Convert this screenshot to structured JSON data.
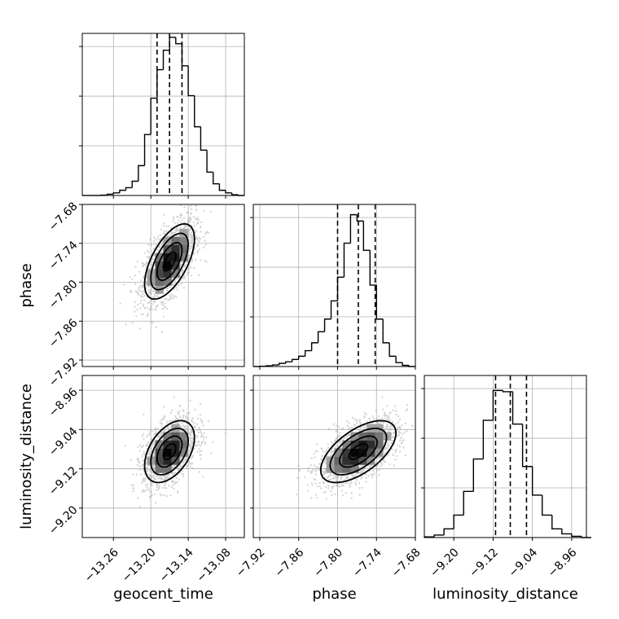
{
  "chart_data": {
    "type": "corner",
    "parameters": [
      {
        "name": "geocent_time",
        "range": [
          -13.31,
          -13.05
        ],
        "ticks": [
          -13.26,
          -13.2,
          -13.14,
          -13.08
        ],
        "tick_labels": [
          "−13.26",
          "−13.20",
          "−13.14",
          "−13.08"
        ],
        "quantiles": [
          -13.19,
          -13.17,
          -13.15
        ]
      },
      {
        "name": "phase",
        "range": [
          -7.93,
          -7.68
        ],
        "ticks": [
          -7.92,
          -7.86,
          -7.8,
          -7.74,
          -7.68
        ],
        "tick_labels": [
          "−7.92",
          "−7.86",
          "−7.80",
          "−7.74",
          "−7.68"
        ],
        "quantiles": [
          -7.8,
          -7.768,
          -7.742
        ]
      },
      {
        "name": "luminosity_distance",
        "range": [
          -9.26,
          -8.93
        ],
        "ticks": [
          -9.2,
          -9.12,
          -9.04,
          -8.96
        ],
        "tick_labels": [
          "−9.20",
          "−9.12",
          "−9.04",
          "−8.96"
        ],
        "quantiles": [
          -9.115,
          -9.085,
          -9.052
        ]
      }
    ],
    "histograms": [
      {
        "parameter": "geocent_time",
        "bin_edges": [
          -13.31,
          -13.3,
          -13.29,
          -13.28,
          -13.27,
          -13.26,
          -13.25,
          -13.24,
          -13.23,
          -13.22,
          -13.21,
          -13.2,
          -13.19,
          -13.18,
          -13.17,
          -13.16,
          -13.15,
          -13.14,
          -13.13,
          -13.12,
          -13.11,
          -13.1,
          -13.09,
          -13.08,
          -13.07,
          -13.06,
          -13.05
        ],
        "counts": [
          0,
          0,
          0,
          0.3,
          1,
          2,
          4,
          6,
          11,
          23,
          47,
          75,
          97,
          112,
          122,
          117,
          100,
          77,
          53,
          35,
          18,
          9,
          4,
          2,
          0.6,
          0
        ],
        "ylim": [
          0,
          125
        ]
      },
      {
        "parameter": "phase",
        "bin_edges": [
          -7.93,
          -7.92,
          -7.91,
          -7.9,
          -7.89,
          -7.88,
          -7.87,
          -7.86,
          -7.85,
          -7.84,
          -7.83,
          -7.82,
          -7.81,
          -7.8,
          -7.79,
          -7.78,
          -7.77,
          -7.76,
          -7.75,
          -7.74,
          -7.73,
          -7.72,
          -7.71,
          -7.7,
          -7.69,
          -7.68
        ],
        "counts": [
          0,
          0.3,
          1,
          2,
          4,
          6,
          9,
          13,
          20,
          30,
          44,
          60,
          83,
          113,
          156,
          192,
          184,
          147,
          103,
          60,
          30,
          13,
          5,
          1.5,
          0
        ],
        "ylim": [
          0,
          205
        ]
      },
      {
        "parameter": "luminosity_distance",
        "bin_edges": [
          -9.26,
          -9.24,
          -9.22,
          -9.2,
          -9.18,
          -9.16,
          -9.14,
          -9.12,
          -9.1,
          -9.08,
          -9.06,
          -9.04,
          -9.02,
          -9.0,
          -8.98,
          -8.96,
          -8.94,
          -8.92
        ],
        "counts": [
          0.5,
          2,
          7,
          18,
          37,
          63,
          94,
          118,
          117,
          91,
          57,
          34,
          18,
          7,
          3,
          1,
          0
        ],
        "ylim": [
          0,
          130
        ]
      }
    ],
    "correlations": [
      {
        "x": "geocent_time",
        "y": "phase",
        "rho": 0.6
      },
      {
        "x": "geocent_time",
        "y": "luminosity_distance",
        "rho": 0.45
      },
      {
        "x": "phase",
        "y": "luminosity_distance",
        "rho": 0.6
      }
    ],
    "grid": true,
    "legend": "none"
  }
}
